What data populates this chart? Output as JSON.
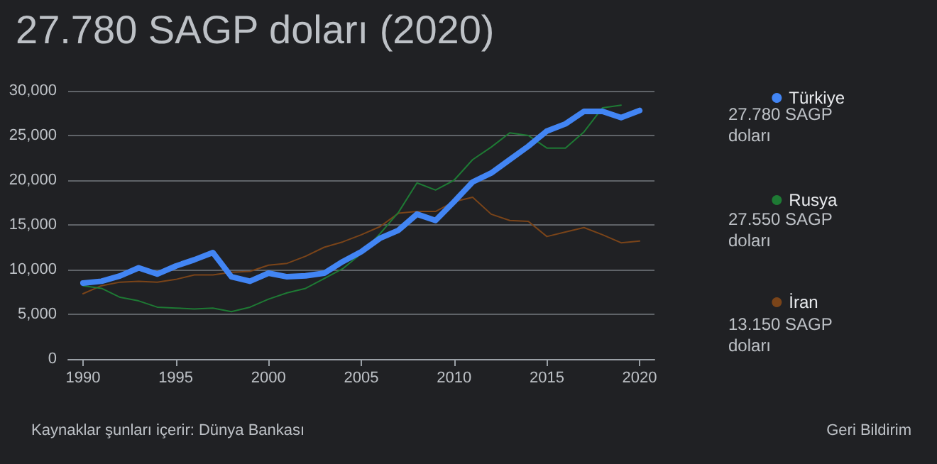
{
  "chart_data": {
    "type": "line",
    "title": "27.780 SAGP doları (2020)",
    "x": [
      1990,
      1991,
      1992,
      1993,
      1994,
      1995,
      1996,
      1997,
      1998,
      1999,
      2000,
      2001,
      2002,
      2003,
      2004,
      2005,
      2006,
      2007,
      2008,
      2009,
      2010,
      2011,
      2012,
      2013,
      2014,
      2015,
      2016,
      2017,
      2018,
      2019,
      2020
    ],
    "series": [
      {
        "name": "Türkiye",
        "color": "#4285f4",
        "values": [
          8500,
          8700,
          9300,
          10200,
          9500,
          10400,
          11100,
          11900,
          9200,
          8700,
          9600,
          9200,
          9300,
          9600,
          10900,
          12000,
          13500,
          14400,
          16200,
          15500,
          17600,
          19800,
          20800,
          22300,
          23800,
          25500,
          26300,
          27700,
          27700,
          27000,
          27800
        ]
      },
      {
        "name": "Rusya",
        "color": "#1e7a34",
        "values": [
          8200,
          7900,
          6900,
          6500,
          5800,
          5700,
          5600,
          5700,
          5300,
          5800,
          6700,
          7400,
          7900,
          9000,
          10100,
          11800,
          14000,
          16400,
          19700,
          18900,
          20000,
          22300,
          23700,
          25300,
          25000,
          23600,
          23600,
          25400,
          28100,
          28400,
          null
        ]
      },
      {
        "name": "İran",
        "color": "#7a4419",
        "values": [
          7300,
          8200,
          8600,
          8700,
          8600,
          8900,
          9400,
          9400,
          9700,
          9800,
          10500,
          10700,
          11500,
          12500,
          13100,
          13900,
          14800,
          16300,
          16500,
          16500,
          17600,
          18100,
          16200,
          15500,
          15400,
          13700,
          14200,
          14700,
          13900,
          13000,
          13200
        ]
      }
    ],
    "xlim": [
      1989.2,
      2020.8
    ],
    "xticks": [
      1990,
      1995,
      2000,
      2005,
      2010,
      2015,
      2020
    ],
    "ylim": [
      0,
      30000
    ],
    "yticks": [
      {
        "value": 0,
        "label": "0"
      },
      {
        "value": 5000,
        "label": "5,000"
      },
      {
        "value": 10000,
        "label": "10,000"
      },
      {
        "value": 15000,
        "label": "15,000"
      },
      {
        "value": 20000,
        "label": "20,000"
      },
      {
        "value": 25000,
        "label": "25,000"
      },
      {
        "value": 30000,
        "label": "30,000"
      }
    ],
    "grid": "y",
    "legend": "right",
    "marker": "none",
    "line_style": "solid",
    "annotations": [
      "27.780 SAGP doları",
      "27.550 SAGP doları",
      "13.150 SAGP doları",
      "Kaynaklar şunları içerir: Dünya Bankası",
      "Geri Bildirim"
    ]
  }
}
